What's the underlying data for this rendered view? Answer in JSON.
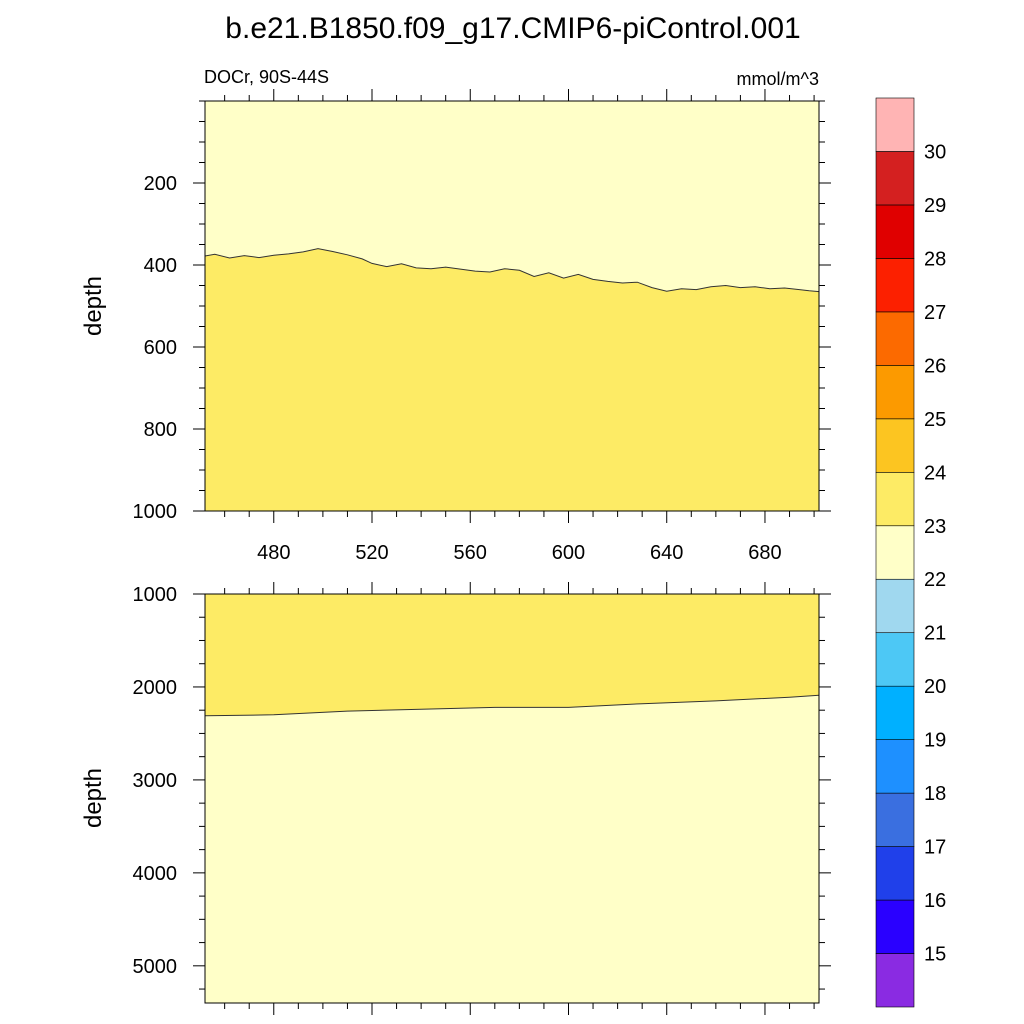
{
  "title": "b.e21.B1850.f09_g17.CMIP6-piControl.001",
  "colors": {
    "zone_light": "#ffffc8",
    "zone_mid": "#fdeb65",
    "contour_line": "#333333"
  },
  "chart_data": [
    {
      "type": "heatmap",
      "panel": "upper",
      "left_label": "DOCr, 90S-44S",
      "right_label": "mmol/m^3",
      "xlabel": "",
      "ylabel": "depth",
      "xlim": [
        452,
        702
      ],
      "ylim": [
        1000,
        0
      ],
      "xticks": [
        480,
        520,
        560,
        600,
        640,
        680
      ],
      "yticks": [
        200,
        400,
        600,
        800,
        1000
      ],
      "contour_level": 23,
      "region_above_color": "#ffffc8",
      "region_below_color": "#fdeb65",
      "contour_23_depth": {
        "x": [
          452,
          456,
          462,
          468,
          474,
          480,
          486,
          492,
          498,
          504,
          510,
          516,
          520,
          526,
          532,
          538,
          544,
          550,
          556,
          562,
          568,
          574,
          580,
          586,
          592,
          598,
          604,
          610,
          616,
          622,
          628,
          634,
          640,
          646,
          652,
          658,
          664,
          670,
          676,
          682,
          688,
          694,
          698,
          702
        ],
        "y": [
          378,
          374,
          383,
          377,
          382,
          376,
          373,
          368,
          360,
          367,
          375,
          385,
          396,
          404,
          397,
          407,
          409,
          405,
          410,
          415,
          417,
          409,
          413,
          428,
          419,
          432,
          423,
          435,
          440,
          444,
          442,
          455,
          464,
          458,
          460,
          453,
          450,
          455,
          453,
          458,
          456,
          460,
          463,
          465
        ]
      }
    },
    {
      "type": "heatmap",
      "panel": "lower",
      "xlabel": "",
      "ylabel": "depth",
      "xlim": [
        452,
        702
      ],
      "ylim": [
        5400,
        1000
      ],
      "yticks": [
        1000,
        2000,
        3000,
        4000,
        5000
      ],
      "contour_level": 23,
      "region_above_color": "#fdeb65",
      "region_below_color": "#ffffc8",
      "contour_23_depth": {
        "x": [
          452,
          480,
          510,
          540,
          570,
          600,
          630,
          660,
          690,
          702
        ],
        "y": [
          2310,
          2300,
          2260,
          2240,
          2220,
          2220,
          2180,
          2150,
          2110,
          2090
        ]
      }
    },
    {
      "type": "colorbar",
      "levels": [
        15,
        16,
        17,
        18,
        19,
        20,
        21,
        22,
        23,
        24,
        25,
        26,
        27,
        28,
        29,
        30
      ],
      "colors": [
        "#8a2be2",
        "#2a00ff",
        "#2040ea",
        "#3a6fe0",
        "#1e90ff",
        "#00b0ff",
        "#4dc8f5",
        "#a0d8ef",
        "#ffffc8",
        "#fdeb65",
        "#fcc521",
        "#fc9a00",
        "#fc6a00",
        "#fc2000",
        "#e00000",
        "#d42020",
        "#ffb4b4"
      ]
    }
  ]
}
